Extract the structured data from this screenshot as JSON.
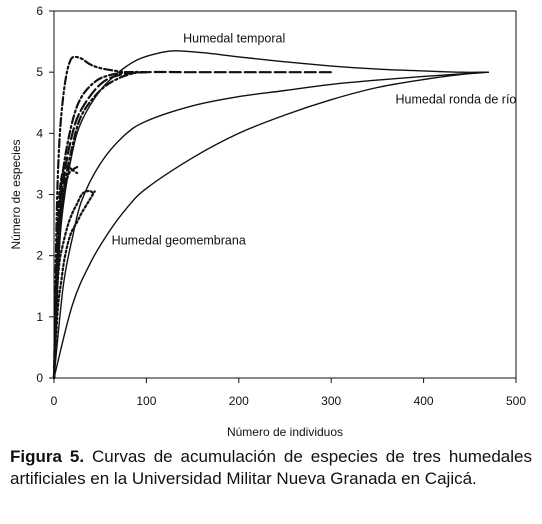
{
  "chart_data": {
    "type": "line",
    "title": "",
    "xlabel": "Número de individuos",
    "ylabel": "Número de especies",
    "xlim": [
      0,
      500
    ],
    "ylim": [
      0,
      6
    ],
    "x_ticks": [
      0,
      100,
      200,
      300,
      400,
      500
    ],
    "y_ticks": [
      0,
      1,
      2,
      3,
      4,
      5,
      6
    ],
    "grid": false,
    "legend": "none",
    "annotations": [
      {
        "text": "Humedal temporal",
        "x": 195,
        "y": 5.55
      },
      {
        "text": "Humedal ronda de río",
        "x": 435,
        "y": 4.55
      },
      {
        "text": "Humedal geomembrana",
        "x": 135,
        "y": 2.25
      }
    ],
    "series": [
      {
        "style": "solid",
        "x": [
          0,
          5,
          10,
          20,
          30,
          50,
          70,
          90,
          110,
          130,
          160,
          200,
          250,
          300,
          350,
          400,
          440,
          470
        ],
        "y": [
          0,
          1.9,
          2.8,
          3.7,
          4.2,
          4.7,
          5.0,
          5.2,
          5.3,
          5.35,
          5.32,
          5.25,
          5.17,
          5.1,
          5.05,
          5.02,
          5.0,
          5.0
        ]
      },
      {
        "style": "solid",
        "x": [
          0,
          10,
          20,
          30,
          50,
          75,
          100,
          150,
          200,
          250,
          300,
          350,
          400,
          440,
          470
        ],
        "y": [
          0,
          1.5,
          2.3,
          2.9,
          3.5,
          3.95,
          4.2,
          4.45,
          4.6,
          4.7,
          4.8,
          4.87,
          4.93,
          4.97,
          5.0
        ]
      },
      {
        "style": "solid",
        "x": [
          0,
          20,
          40,
          60,
          80,
          100,
          150,
          200,
          250,
          300,
          350,
          400,
          440,
          470
        ],
        "y": [
          0,
          1.2,
          1.9,
          2.4,
          2.8,
          3.1,
          3.6,
          4.0,
          4.3,
          4.55,
          4.75,
          4.88,
          4.96,
          5.0
        ]
      },
      {
        "style": "dash-dot-dot",
        "x": [
          0,
          3,
          6,
          10,
          14,
          18,
          22,
          30,
          40,
          55,
          80,
          100
        ],
        "y": [
          0,
          2.7,
          3.9,
          4.6,
          5.0,
          5.2,
          5.25,
          5.22,
          5.12,
          5.05,
          5.0,
          5.0
        ]
      },
      {
        "style": "dash-dot",
        "x": [
          0,
          5,
          10,
          20,
          30,
          45,
          60,
          80,
          100
        ],
        "y": [
          0,
          2.4,
          3.4,
          4.2,
          4.6,
          4.85,
          4.95,
          5.0,
          5.0
        ]
      },
      {
        "style": "long-dash",
        "x": [
          0,
          5,
          10,
          20,
          30,
          50,
          70,
          100,
          150,
          200,
          250,
          300
        ],
        "y": [
          0,
          2.2,
          3.2,
          4.0,
          4.4,
          4.8,
          4.95,
          5.0,
          5.0,
          5.0,
          5.0,
          5.0
        ]
      },
      {
        "style": "dash-dot",
        "x": [
          0,
          5,
          10,
          20,
          30,
          50,
          70,
          90
        ],
        "y": [
          0,
          2.0,
          3.0,
          3.8,
          4.3,
          4.7,
          4.9,
          5.0
        ]
      },
      {
        "style": "dash",
        "x": [
          0,
          3,
          6,
          10,
          15,
          20,
          25
        ],
        "y": [
          0,
          2.0,
          3.0,
          3.4,
          3.45,
          3.4,
          3.35
        ]
      },
      {
        "style": "dot",
        "x": [
          0,
          3,
          6,
          10,
          15,
          20,
          25,
          30,
          35,
          40,
          43
        ],
        "y": [
          0,
          1.3,
          1.9,
          2.2,
          2.5,
          2.7,
          2.85,
          3.0,
          3.05,
          3.05,
          3.0
        ]
      },
      {
        "style": "dot",
        "x": [
          0,
          4,
          8,
          12,
          18,
          25,
          30,
          36,
          40,
          44
        ],
        "y": [
          0,
          1.1,
          1.6,
          2.0,
          2.35,
          2.55,
          2.7,
          2.85,
          2.95,
          3.05
        ]
      },
      {
        "style": "dash-dot-dot",
        "x": [
          0,
          5,
          10,
          15,
          20,
          25
        ],
        "y": [
          0,
          2.1,
          2.9,
          3.3,
          3.4,
          3.45
        ]
      }
    ]
  },
  "caption": {
    "label": "Figura 5.",
    "text": " Curvas de acumulación de especies de tres humedales artificiales en la Universidad Militar Nueva Granada en Cajicá."
  }
}
